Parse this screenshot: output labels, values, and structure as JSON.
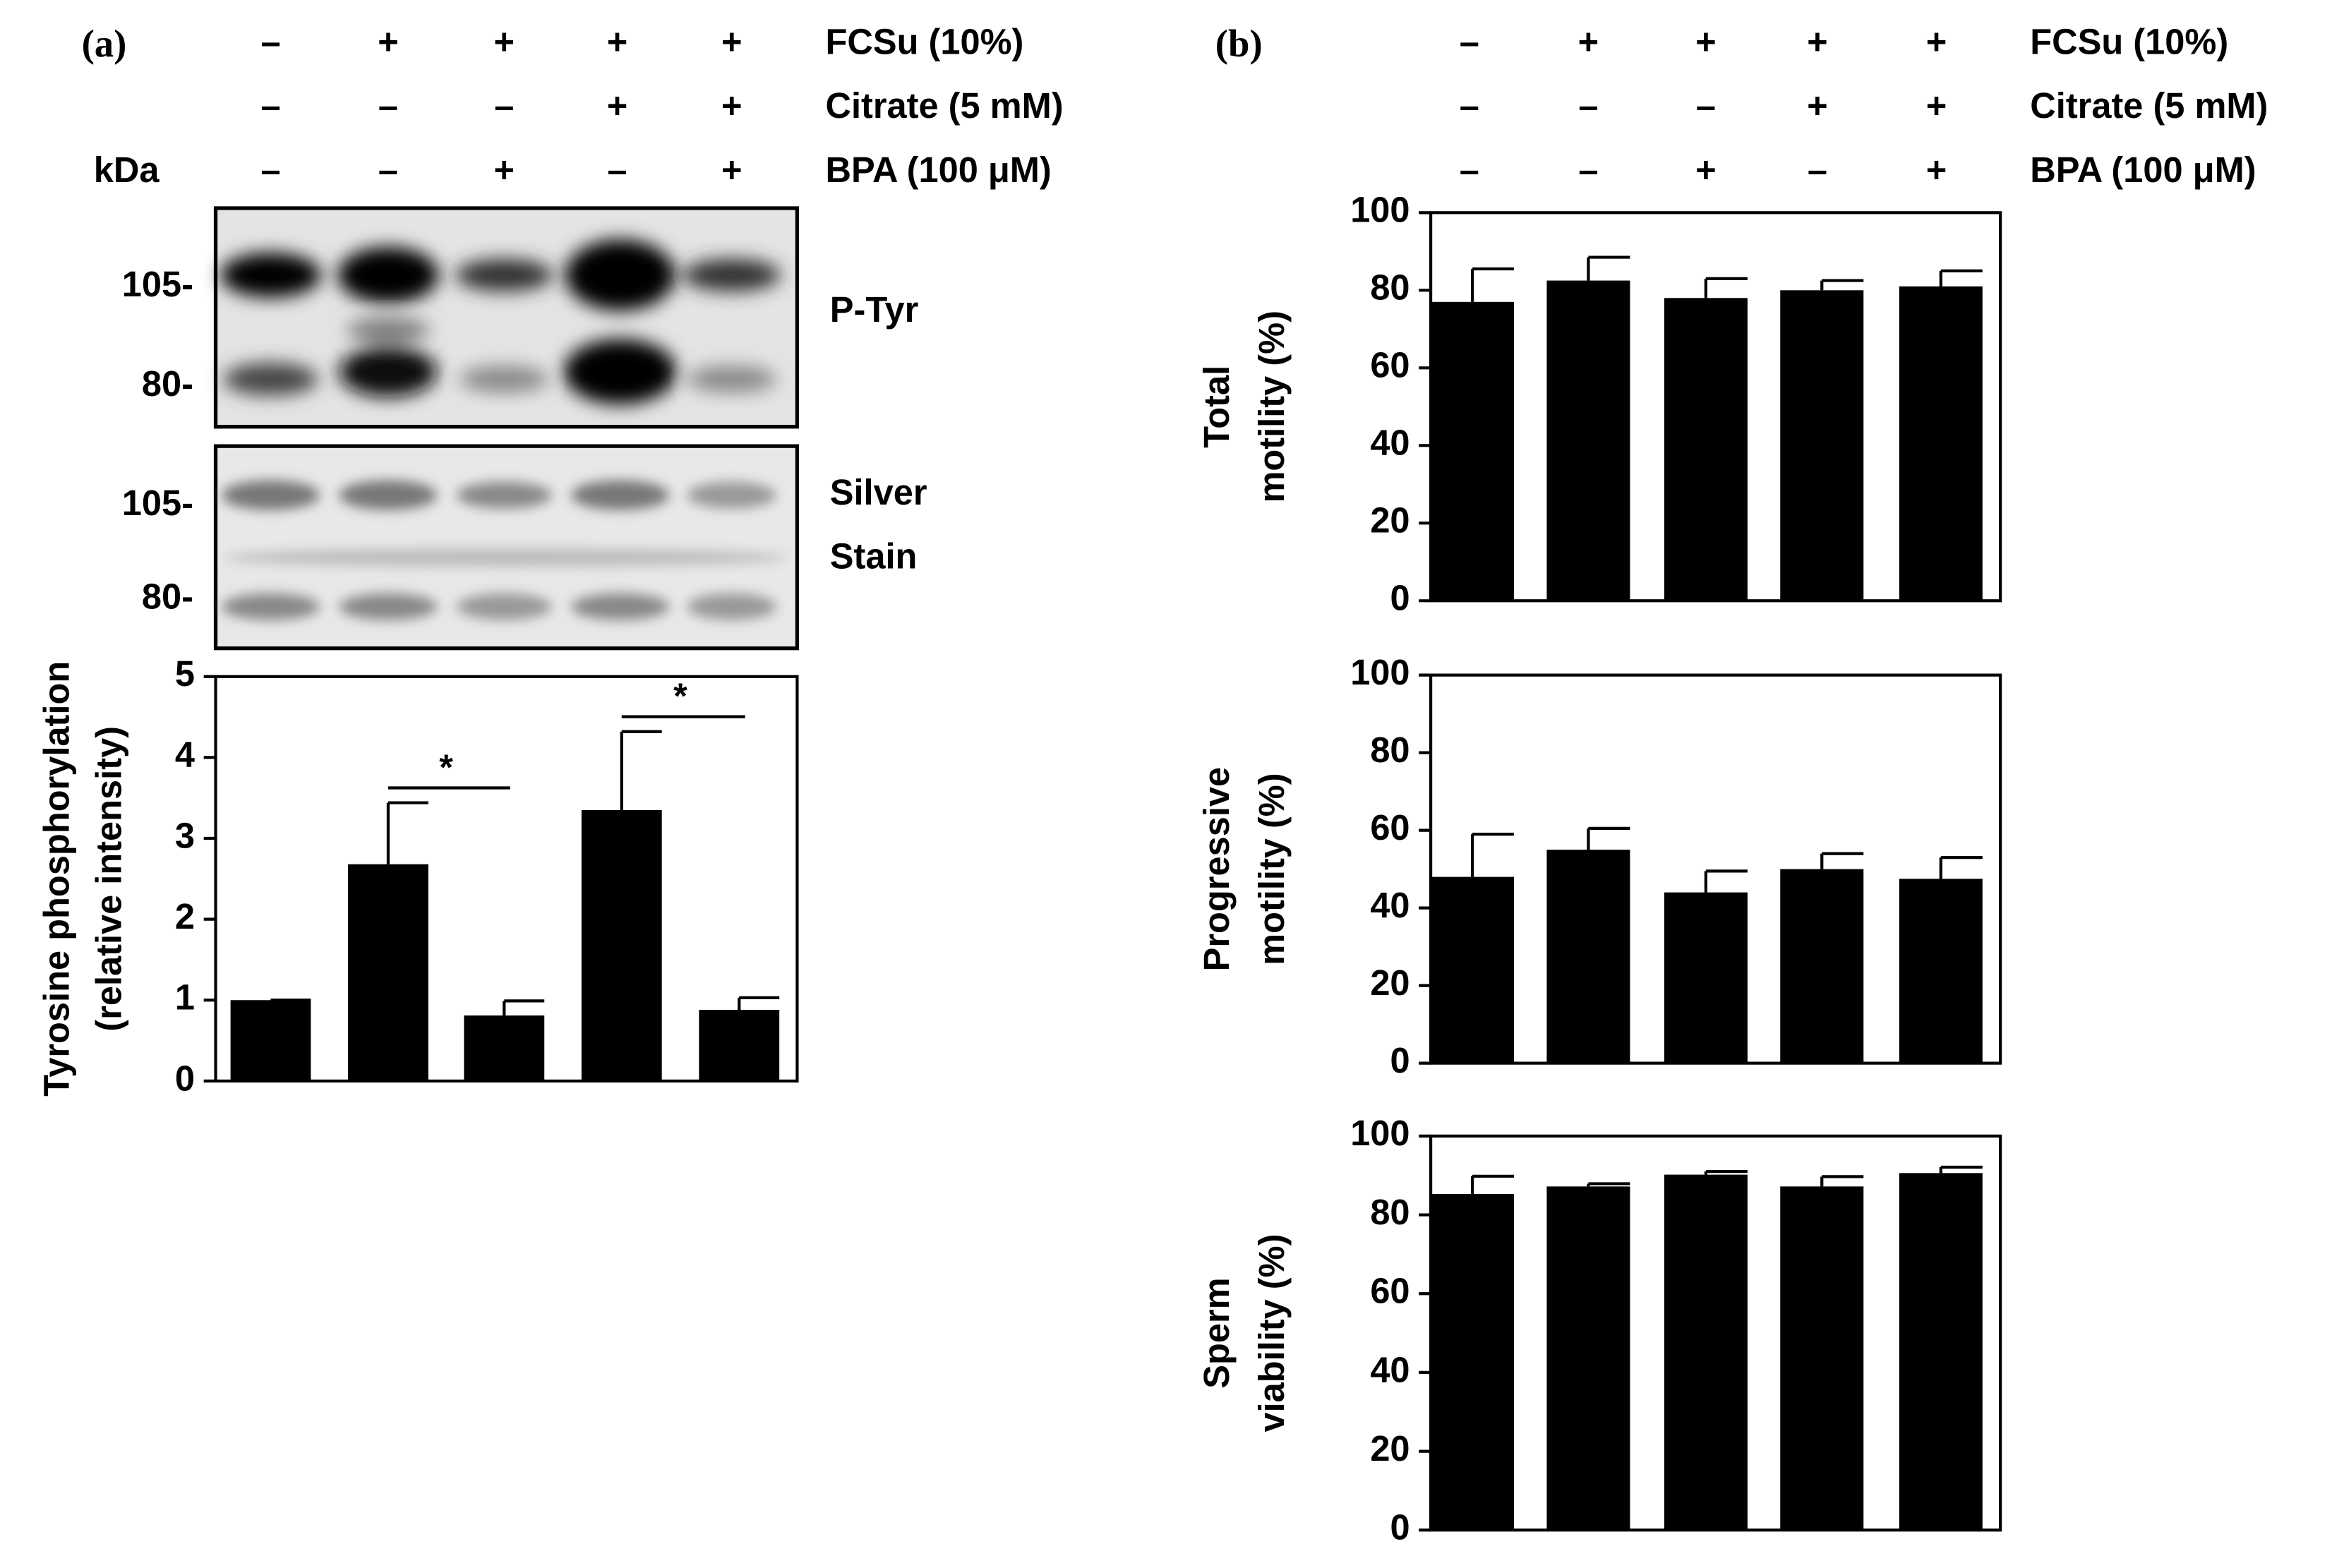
{
  "panels": [
    {
      "label": "(a)",
      "unit": "kDa",
      "treatments": [
        {
          "name": "FCSu (10%)",
          "signs": [
            "–",
            "+",
            "+",
            "+",
            "+"
          ]
        },
        {
          "name": "Citrate (5 mM)",
          "signs": [
            "–",
            "–",
            "–",
            "+",
            "+"
          ]
        },
        {
          "name": "BPA (100 μM)",
          "signs": [
            "–",
            "–",
            "+",
            "–",
            "+"
          ]
        }
      ],
      "blots": [
        {
          "label": [
            "P-Tyr"
          ],
          "markers": [
            "105-",
            "80-"
          ]
        },
        {
          "label": [
            "Silver",
            "Stain"
          ],
          "markers": [
            "105-",
            "80-"
          ]
        }
      ]
    },
    {
      "label": "(b)",
      "treatments": [
        {
          "name": "FCSu (10%)",
          "signs": [
            "–",
            "+",
            "+",
            "+",
            "+"
          ]
        },
        {
          "name": "Citrate (5 mM)",
          "signs": [
            "–",
            "–",
            "–",
            "+",
            "+"
          ]
        },
        {
          "name": "BPA (100 μM)",
          "signs": [
            "–",
            "–",
            "+",
            "–",
            "+"
          ]
        }
      ]
    }
  ],
  "chart_data": [
    {
      "type": "bar",
      "ylabel": [
        "Tyrosine phosphorylation",
        "(relative intensity)"
      ],
      "categories": [
        null,
        null,
        null,
        null,
        null
      ],
      "values": [
        1.0,
        2.68,
        0.81,
        3.35,
        0.88
      ],
      "errors": [
        0,
        0.76,
        0.18,
        0.97,
        0.15
      ],
      "ylim": [
        0,
        5
      ],
      "yticks": [
        0,
        1,
        2,
        3,
        4,
        5
      ],
      "color": "#000000",
      "annotations": [
        {
          "text": "*",
          "between": [
            1,
            2
          ]
        },
        {
          "text": "*",
          "between": [
            3,
            4
          ]
        }
      ]
    },
    {
      "type": "bar",
      "ylabel": [
        "Total",
        "motility (%)"
      ],
      "categories": [
        null,
        null,
        null,
        null,
        null
      ],
      "values": [
        77,
        82.5,
        78,
        80,
        81
      ],
      "errors": [
        8.5,
        6,
        5,
        2.5,
        4
      ],
      "ylim": [
        0,
        100
      ],
      "yticks": [
        0,
        20,
        40,
        60,
        80,
        100
      ],
      "color": "#000000"
    },
    {
      "type": "bar",
      "ylabel": [
        "Progressive",
        "motility (%)"
      ],
      "categories": [
        null,
        null,
        null,
        null,
        null
      ],
      "values": [
        48,
        55,
        44,
        50,
        47.5
      ],
      "errors": [
        11,
        5.5,
        5.5,
        4,
        5.5
      ],
      "ylim": [
        0,
        100
      ],
      "yticks": [
        0,
        20,
        40,
        60,
        80,
        100
      ],
      "color": "#000000"
    },
    {
      "type": "bar",
      "ylabel": [
        "Sperm",
        "viability (%)"
      ],
      "categories": [
        null,
        null,
        null,
        null,
        null
      ],
      "values": [
        85.3,
        87.2,
        90.2,
        87.2,
        90.6
      ],
      "errors": [
        4.5,
        0.7,
        0.8,
        2.5,
        1.5
      ],
      "ylim": [
        0,
        100
      ],
      "yticks": [
        0,
        20,
        40,
        60,
        80,
        100
      ],
      "color": "#000000"
    }
  ]
}
